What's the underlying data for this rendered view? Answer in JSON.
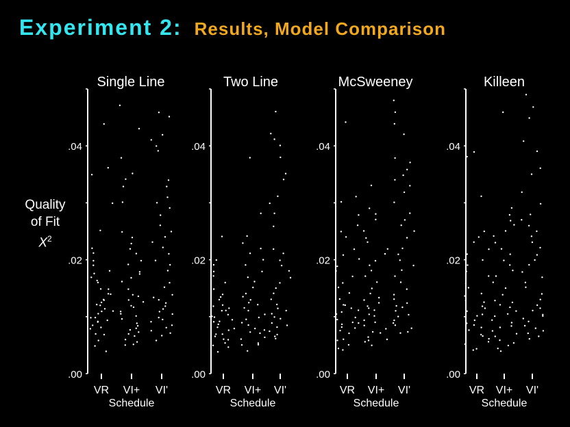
{
  "title": {
    "main": "Experiment 2:",
    "sub": "Results, Model Comparison"
  },
  "ylabel": {
    "line1": "Quality",
    "line2": "of Fit",
    "symbol": "X",
    "power": "2"
  },
  "colors": {
    "background": "#000000",
    "title_main": "#33e6f0",
    "title_sub": "#f2a81c",
    "points": "#ffffff"
  },
  "chart_data": [
    {
      "type": "scatter",
      "title": "Single Line",
      "xlabel": "Schedule",
      "categories": [
        "VR",
        "VI+",
        "VI'"
      ],
      "yticks": [
        ".00",
        ".02",
        ".04"
      ],
      "ylim": [
        0,
        0.05
      ],
      "series": [
        {
          "category": "VR",
          "values": [
            0.005,
            0.007,
            0.008,
            0.009,
            0.01,
            0.011,
            0.012,
            0.013,
            0.014,
            0.015,
            0.016,
            0.017,
            0.018,
            0.02,
            0.022,
            0.025,
            0.035,
            0.036,
            0.044,
            0.007,
            0.009,
            0.011,
            0.012,
            0.014,
            0.006,
            0.008,
            0.01,
            0.013,
            0.019,
            0.021,
            0.004,
            0.0085,
            0.0095,
            0.0105,
            0.0115,
            0.0125,
            0.015,
            0.0165,
            0.0175,
            0.03
          ]
        },
        {
          "category": "VI+",
          "values": [
            0.005,
            0.006,
            0.007,
            0.008,
            0.009,
            0.01,
            0.011,
            0.012,
            0.013,
            0.014,
            0.016,
            0.017,
            0.018,
            0.019,
            0.02,
            0.022,
            0.023,
            0.024,
            0.033,
            0.035,
            0.043,
            0.047,
            0.005,
            0.0065,
            0.0075,
            0.0085,
            0.0095,
            0.0105,
            0.0115,
            0.015,
            0.021,
            0.03,
            0.034,
            0.0055,
            0.0072,
            0.0125,
            0.0135,
            0.0175,
            0.025,
            0.038
          ]
        },
        {
          "category": "VI'",
          "values": [
            0.006,
            0.007,
            0.008,
            0.009,
            0.01,
            0.011,
            0.012,
            0.013,
            0.014,
            0.015,
            0.016,
            0.019,
            0.021,
            0.022,
            0.024,
            0.026,
            0.029,
            0.03,
            0.033,
            0.034,
            0.04,
            0.042,
            0.045,
            0.046,
            0.0065,
            0.0075,
            0.0085,
            0.0095,
            0.0105,
            0.0115,
            0.0125,
            0.0135,
            0.018,
            0.023,
            0.025,
            0.028,
            0.031,
            0.039,
            0.041,
            0.02
          ]
        }
      ]
    },
    {
      "type": "scatter",
      "title": "Two Line",
      "xlabel": "Schedule",
      "categories": [
        "VR",
        "VI+",
        "VI'"
      ],
      "yticks": [
        ".00",
        ".02",
        ".04"
      ],
      "ylim": [
        0,
        0.05
      ],
      "series": [
        {
          "category": "VR",
          "values": [
            0.004,
            0.005,
            0.006,
            0.007,
            0.008,
            0.009,
            0.01,
            0.011,
            0.012,
            0.013,
            0.014,
            0.015,
            0.016,
            0.018,
            0.019,
            0.02,
            0.024,
            0.006,
            0.008,
            0.009,
            0.011,
            0.012,
            0.0045,
            0.0055,
            0.0065,
            0.0075,
            0.0085,
            0.0095,
            0.0105,
            0.0115,
            0.0135,
            0.017,
            0.007,
            0.01
          ]
        },
        {
          "category": "VI+",
          "values": [
            0.004,
            0.005,
            0.006,
            0.007,
            0.008,
            0.009,
            0.01,
            0.011,
            0.012,
            0.013,
            0.014,
            0.015,
            0.016,
            0.017,
            0.018,
            0.019,
            0.022,
            0.024,
            0.028,
            0.038,
            0.005,
            0.0065,
            0.0075,
            0.0085,
            0.0095,
            0.0105,
            0.0115,
            0.0125,
            0.0135,
            0.02,
            0.021,
            0.023,
            0.0055,
            0.0072
          ]
        },
        {
          "category": "VI'",
          "values": [
            0.006,
            0.007,
            0.008,
            0.009,
            0.01,
            0.011,
            0.012,
            0.014,
            0.015,
            0.016,
            0.017,
            0.018,
            0.019,
            0.02,
            0.021,
            0.022,
            0.026,
            0.03,
            0.031,
            0.034,
            0.038,
            0.04,
            0.041,
            0.042,
            0.046,
            0.0065,
            0.0075,
            0.0085,
            0.0095,
            0.0105,
            0.0115,
            0.013,
            0.028,
            0.035
          ]
        }
      ]
    },
    {
      "type": "scatter",
      "title": "McSweeney",
      "xlabel": "Schedule",
      "categories": [
        "VR",
        "VI+",
        "VI'"
      ],
      "yticks": [
        ".00",
        ".02",
        ".04"
      ],
      "ylim": [
        0,
        0.05
      ],
      "series": [
        {
          "category": "VR",
          "values": [
            0.004,
            0.005,
            0.006,
            0.007,
            0.008,
            0.009,
            0.01,
            0.011,
            0.012,
            0.013,
            0.014,
            0.015,
            0.016,
            0.018,
            0.019,
            0.02,
            0.022,
            0.025,
            0.026,
            0.028,
            0.031,
            0.044,
            0.006,
            0.008,
            0.009,
            0.011,
            0.012,
            0.0045,
            0.0075,
            0.0085,
            0.0095,
            0.0105,
            0.0115,
            0.017,
            0.021,
            0.024,
            0.03
          ]
        },
        {
          "category": "VI+",
          "values": [
            0.005,
            0.006,
            0.007,
            0.008,
            0.009,
            0.01,
            0.011,
            0.012,
            0.013,
            0.014,
            0.015,
            0.016,
            0.018,
            0.019,
            0.021,
            0.022,
            0.023,
            0.025,
            0.027,
            0.029,
            0.033,
            0.006,
            0.0075,
            0.0085,
            0.0095,
            0.0105,
            0.0115,
            0.0125,
            0.0135,
            0.02,
            0.024,
            0.0055,
            0.0065,
            0.017,
            0.028
          ]
        },
        {
          "category": "VI'",
          "values": [
            0.007,
            0.008,
            0.009,
            0.01,
            0.011,
            0.012,
            0.013,
            0.014,
            0.015,
            0.016,
            0.017,
            0.019,
            0.02,
            0.022,
            0.024,
            0.025,
            0.027,
            0.028,
            0.03,
            0.032,
            0.033,
            0.035,
            0.036,
            0.037,
            0.038,
            0.042,
            0.044,
            0.046,
            0.048,
            0.0075,
            0.0085,
            0.0095,
            0.0105,
            0.0115,
            0.0125,
            0.018,
            0.021,
            0.026,
            0.034
          ]
        }
      ]
    },
    {
      "type": "scatter",
      "title": "Killeen",
      "xlabel": "Schedule",
      "categories": [
        "VR",
        "VI+",
        "VI'"
      ],
      "yticks": [
        ".00",
        ".02",
        ".04"
      ],
      "ylim": [
        0,
        0.05
      ],
      "series": [
        {
          "category": "VR",
          "values": [
            0.004,
            0.005,
            0.006,
            0.007,
            0.008,
            0.009,
            0.01,
            0.011,
            0.012,
            0.013,
            0.014,
            0.015,
            0.016,
            0.017,
            0.018,
            0.02,
            0.021,
            0.022,
            0.024,
            0.025,
            0.038,
            0.039,
            0.0045,
            0.0055,
            0.0065,
            0.0075,
            0.0085,
            0.0095,
            0.0105,
            0.0115,
            0.0125,
            0.0135,
            0.019,
            0.023,
            0.031
          ]
        },
        {
          "category": "VI+",
          "values": [
            0.004,
            0.005,
            0.006,
            0.007,
            0.008,
            0.009,
            0.01,
            0.011,
            0.012,
            0.013,
            0.014,
            0.015,
            0.016,
            0.017,
            0.018,
            0.019,
            0.02,
            0.021,
            0.023,
            0.024,
            0.025,
            0.026,
            0.027,
            0.028,
            0.029,
            0.046,
            0.0045,
            0.0055,
            0.0065,
            0.0075,
            0.0085,
            0.0095,
            0.0105,
            0.0115,
            0.0125,
            0.022
          ]
        },
        {
          "category": "VI'",
          "values": [
            0.006,
            0.007,
            0.008,
            0.009,
            0.01,
            0.011,
            0.012,
            0.013,
            0.014,
            0.015,
            0.016,
            0.017,
            0.018,
            0.019,
            0.02,
            0.021,
            0.022,
            0.023,
            0.025,
            0.026,
            0.027,
            0.028,
            0.032,
            0.035,
            0.036,
            0.039,
            0.041,
            0.045,
            0.047,
            0.049,
            0.0065,
            0.0075,
            0.0085,
            0.0095,
            0.0105,
            0.0115,
            0.024,
            0.03
          ]
        }
      ]
    }
  ]
}
